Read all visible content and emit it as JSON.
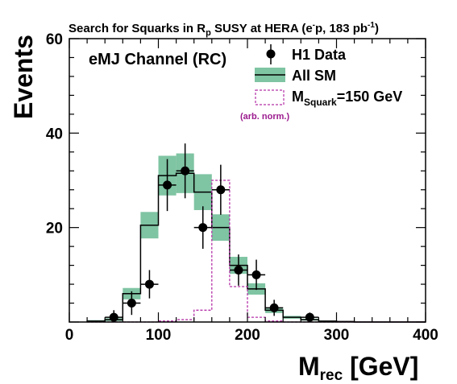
{
  "chart_data": {
    "type": "histogram",
    "title": {
      "before_subscript": "Search for Squarks in R",
      "subscript": "p",
      "after_subscript": " SUSY at HERA (e",
      "superscript": "-",
      "after_superscript": "p, 183 pb",
      "unit_superscript": "-1",
      "end": ")"
    },
    "ylabel": "Events",
    "xlabel": {
      "main": "M",
      "subscript": "rec",
      "unit": " [GeV]"
    },
    "xlim": [
      0,
      400
    ],
    "ylim": [
      0,
      60
    ],
    "x_ticks": [
      0,
      100,
      200,
      300,
      400
    ],
    "y_ticks": [
      20,
      40,
      60
    ],
    "channel_label": "eMJ Channel (RC)",
    "legend": {
      "data_label": "H1 Data",
      "sm_label": "All SM",
      "signal_label": {
        "main": "M",
        "subscript": "Squark",
        "value": "=150 GeV"
      },
      "signal_note": "(arb. norm.)"
    },
    "colors": {
      "sm_band": "#7fc4a3",
      "signal": "#b530a8",
      "data": "#000000"
    },
    "bin_edges": [
      20,
      40,
      60,
      80,
      100,
      120,
      140,
      160,
      180,
      200,
      220,
      240,
      260,
      280,
      300,
      320,
      340,
      360,
      380,
      400
    ],
    "sm_values": [
      0.2,
      0.5,
      6,
      20.5,
      31,
      31.5,
      27.5,
      20,
      12,
      7,
      2.5,
      1,
      0.5,
      0.2,
      0.1,
      0,
      0,
      0,
      0
    ],
    "sm_band_half_width": [
      0.2,
      0.3,
      1.2,
      2.8,
      4.2,
      4.2,
      3.8,
      2.8,
      1.8,
      1.2,
      0.6,
      0.3,
      0.2,
      0.1,
      0,
      0,
      0,
      0,
      0
    ],
    "signal_values": [
      0,
      0,
      0,
      0,
      0.2,
      0.5,
      2.5,
      30,
      7.5,
      1,
      0.2,
      0,
      0,
      0,
      0,
      0,
      0,
      0,
      0
    ],
    "data_points": [
      {
        "x": 50,
        "y": 1,
        "err": 1.5
      },
      {
        "x": 70,
        "y": 4,
        "err": 2.5
      },
      {
        "x": 90,
        "y": 8,
        "err": 3
      },
      {
        "x": 110,
        "y": 29,
        "err": 5.5
      },
      {
        "x": 130,
        "y": 32,
        "err": 5.8
      },
      {
        "x": 150,
        "y": 20,
        "err": 4.5
      },
      {
        "x": 170,
        "y": 28,
        "err": 5.3
      },
      {
        "x": 190,
        "y": 11,
        "err": 3.3
      },
      {
        "x": 210,
        "y": 10,
        "err": 3.2
      },
      {
        "x": 230,
        "y": 3,
        "err": 1.7
      },
      {
        "x": 270,
        "y": 1,
        "err": 1
      }
    ]
  }
}
